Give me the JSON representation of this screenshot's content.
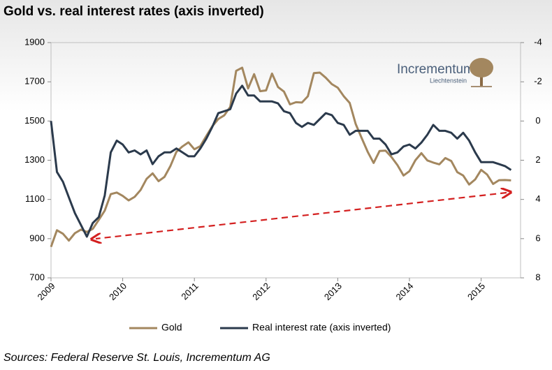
{
  "chart_data": {
    "type": "line",
    "title": "Gold vs. real interest rates (axis inverted)",
    "source": "Sources: Federal Reserve St. Louis, Incrementum AG",
    "logo": {
      "name": "Incrementum",
      "sub": "Liechtenstein"
    },
    "x": [
      2009.0,
      2009.083,
      2009.167,
      2009.25,
      2009.333,
      2009.417,
      2009.5,
      2009.583,
      2009.667,
      2009.75,
      2009.833,
      2009.917,
      2010.0,
      2010.083,
      2010.167,
      2010.25,
      2010.333,
      2010.417,
      2010.5,
      2010.583,
      2010.667,
      2010.75,
      2010.833,
      2010.917,
      2011.0,
      2011.083,
      2011.167,
      2011.25,
      2011.333,
      2011.417,
      2011.5,
      2011.583,
      2011.667,
      2011.75,
      2011.833,
      2011.917,
      2012.0,
      2012.083,
      2012.167,
      2012.25,
      2012.333,
      2012.417,
      2012.5,
      2012.583,
      2012.667,
      2012.75,
      2012.833,
      2012.917,
      2013.0,
      2013.083,
      2013.167,
      2013.25,
      2013.333,
      2013.417,
      2013.5,
      2013.583,
      2013.667,
      2013.75,
      2013.833,
      2013.917,
      2014.0,
      2014.083,
      2014.167,
      2014.25,
      2014.333,
      2014.417,
      2014.5,
      2014.583,
      2014.667,
      2014.75,
      2014.833,
      2014.917,
      2015.0,
      2015.083,
      2015.167,
      2015.25,
      2015.333,
      2015.417
    ],
    "series": [
      {
        "name": "Gold",
        "color": "#a3875f",
        "values": [
          858,
          943,
          925,
          890,
          928,
          946,
          934,
          950,
          996,
          1043,
          1127,
          1135,
          1118,
          1095,
          1113,
          1148,
          1205,
          1233,
          1193,
          1215,
          1271,
          1343,
          1370,
          1391,
          1356,
          1372,
          1424,
          1473,
          1510,
          1529,
          1572,
          1756,
          1772,
          1666,
          1739,
          1652,
          1656,
          1742,
          1673,
          1650,
          1585,
          1596,
          1594,
          1626,
          1744,
          1747,
          1721,
          1688,
          1670,
          1627,
          1592,
          1485,
          1414,
          1343,
          1286,
          1347,
          1349,
          1316,
          1275,
          1222,
          1244,
          1300,
          1336,
          1299,
          1288,
          1279,
          1311,
          1296,
          1239,
          1222,
          1176,
          1202,
          1251,
          1227,
          1179,
          1198,
          1199,
          1197
        ]
      },
      {
        "name": "Real interest rate (axis inverted)",
        "color": "#2b3a4c",
        "axis": "y2",
        "values": [
          0,
          2.6,
          3.1,
          3.9,
          4.7,
          5.3,
          5.9,
          5.2,
          4.9,
          3.8,
          1.6,
          1.0,
          1.2,
          1.6,
          1.5,
          1.7,
          1.5,
          2.2,
          1.8,
          1.6,
          1.6,
          1.4,
          1.6,
          1.8,
          1.8,
          1.4,
          0.9,
          0.3,
          -0.4,
          -0.5,
          -0.6,
          -1.4,
          -1.8,
          -1.3,
          -1.3,
          -1.0,
          -1.0,
          -1.0,
          -0.9,
          -0.5,
          -0.4,
          0.1,
          0.3,
          0.1,
          0.2,
          -0.1,
          -0.4,
          -0.3,
          0.1,
          0.2,
          0.7,
          0.5,
          0.5,
          0.5,
          0.9,
          0.9,
          1.2,
          1.7,
          1.6,
          1.3,
          1.2,
          1.4,
          1.1,
          0.7,
          0.2,
          0.5,
          0.5,
          0.6,
          0.9,
          0.6,
          1.0,
          1.6,
          2.1,
          2.1,
          2.1,
          2.2,
          2.3,
          2.5
        ]
      }
    ],
    "xlim": [
      2009,
      2015.55
    ],
    "xticks": [
      2009,
      2010,
      2011,
      2012,
      2013,
      2014,
      2015
    ],
    "ylim": [
      700,
      1900
    ],
    "yticks": [
      700,
      900,
      1100,
      1300,
      1500,
      1700,
      1900
    ],
    "y2lim": [
      8,
      -4
    ],
    "y2ticks": [
      -4,
      -2,
      0,
      2,
      4,
      6,
      8
    ],
    "legend": "bottom"
  }
}
